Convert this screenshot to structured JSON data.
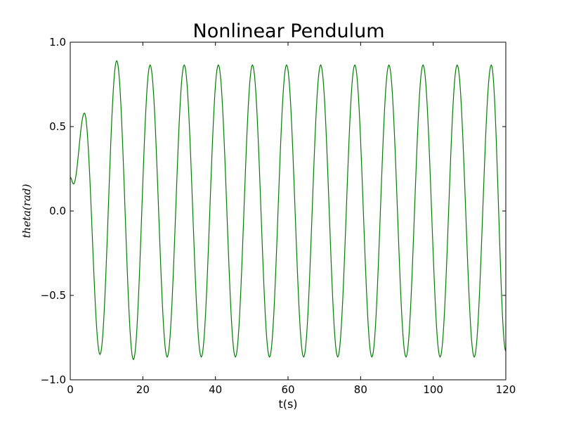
{
  "chart_data": {
    "type": "line",
    "title": "Nonlinear Pendulum",
    "xlabel": "t(s)",
    "ylabel": "theta(rad)",
    "xlim": [
      0,
      120
    ],
    "ylim": [
      -1.0,
      1.0
    ],
    "xticks": [
      0,
      20,
      40,
      60,
      80,
      100,
      120
    ],
    "xtick_labels": [
      "0",
      "20",
      "40",
      "60",
      "80",
      "100",
      "120"
    ],
    "yticks": [
      -1.0,
      -0.5,
      0.0,
      0.5,
      1.0
    ],
    "ytick_labels": [
      "−1.0",
      "−0.5",
      "0.0",
      "0.5",
      "1.0"
    ],
    "grid": false,
    "series": [
      {
        "color": "#008000",
        "extrema": [
          [
            0,
            0.2
          ],
          [
            0.9,
            0.16
          ],
          [
            3.9,
            0.58
          ],
          [
            8.2,
            -0.85
          ],
          [
            12.8,
            0.89
          ],
          [
            17.4,
            -0.88
          ],
          [
            22.0,
            0.865
          ],
          [
            26.7,
            -0.865
          ],
          [
            31.4,
            0.865
          ],
          [
            36.1,
            -0.865
          ],
          [
            40.8,
            0.865
          ],
          [
            45.5,
            -0.865
          ],
          [
            50.2,
            0.865
          ],
          [
            54.9,
            -0.865
          ],
          [
            59.6,
            0.865
          ],
          [
            64.3,
            -0.865
          ],
          [
            69.0,
            0.865
          ],
          [
            73.7,
            -0.865
          ],
          [
            78.4,
            0.865
          ],
          [
            83.1,
            -0.865
          ],
          [
            87.8,
            0.865
          ],
          [
            92.5,
            -0.865
          ],
          [
            97.2,
            0.865
          ],
          [
            101.9,
            -0.865
          ],
          [
            106.6,
            0.865
          ],
          [
            111.3,
            -0.865
          ],
          [
            116.0,
            0.865
          ],
          [
            120,
            -0.83
          ]
        ]
      }
    ]
  }
}
